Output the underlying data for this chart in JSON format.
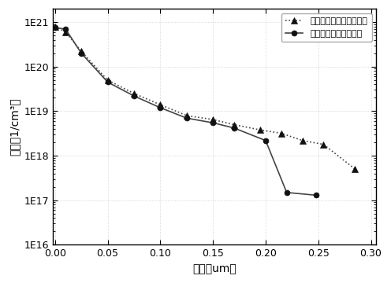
{
  "series1_label": "本发明发射极掺杂分布图",
  "series2_label": "常规发射极掺杂分布图",
  "series1_x": [
    0.0,
    0.01,
    0.025,
    0.05,
    0.075,
    0.1,
    0.125,
    0.15,
    0.17,
    0.195,
    0.215,
    0.235,
    0.255,
    0.285
  ],
  "series1_y": [
    8e+20,
    6e+20,
    2.2e+20,
    5e+19,
    2.5e+19,
    1.4e+19,
    8e+18,
    6.5e+18,
    5e+18,
    3.8e+18,
    3.2e+18,
    2.2e+18,
    1.8e+18,
    5e+17
  ],
  "series2_x": [
    0.0,
    0.01,
    0.025,
    0.05,
    0.075,
    0.1,
    0.125,
    0.15,
    0.17,
    0.2,
    0.22,
    0.248
  ],
  "series2_y": [
    7.5e+20,
    7e+20,
    2e+20,
    4.5e+19,
    2.2e+19,
    1.2e+19,
    7e+18,
    5.5e+18,
    4.2e+18,
    2.2e+18,
    1.5e+17,
    1.3e+17
  ],
  "xlabel": "结深（um）",
  "ylabel": "浓度（1/cm³）",
  "ylim_min": 1e+16,
  "ylim_max": 2e+21,
  "xlim_min": -0.002,
  "xlim_max": 0.305,
  "xticks": [
    0.0,
    0.05,
    0.1,
    0.15,
    0.2,
    0.25,
    0.3
  ],
  "ytick_labels": [
    "1E16",
    "1E17",
    "1E18",
    "1E19",
    "1E20",
    "1E21"
  ],
  "ytick_vals": [
    1e+16,
    1e+17,
    1e+18,
    1e+19,
    1e+20,
    1e+21
  ],
  "line1_color": "#444444",
  "line2_color": "#444444",
  "marker_color": "#111111",
  "bg_color": "#ffffff",
  "plot_bg_color": "#ffffff",
  "grid_color": "#cccccc",
  "spine_color": "#000000",
  "legend_loc": "upper right",
  "font_size_ticks": 9,
  "font_size_labels": 10,
  "font_size_legend": 8
}
